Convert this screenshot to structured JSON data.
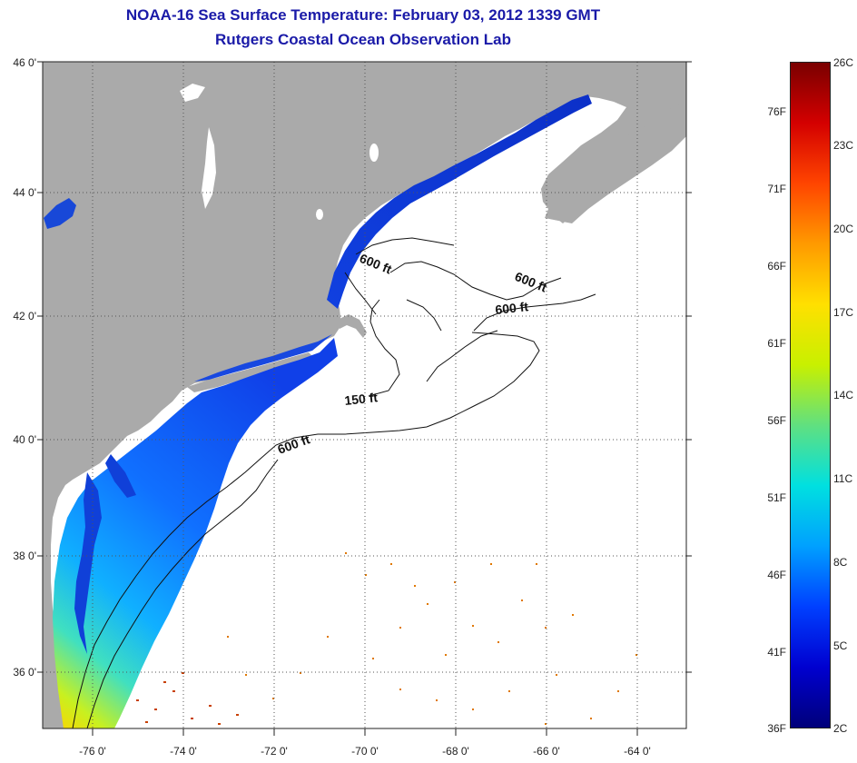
{
  "title": "NOAA-16 Sea Surface Temperature:  February 03, 2012 1339 GMT",
  "subtitle": "Rutgers Coastal Ocean Observation Lab",
  "lat_labels": [
    "46 0'",
    "44 0'",
    "42 0'",
    "40 0'",
    "38 0'",
    "36 0'"
  ],
  "lon_labels": [
    "-76 0'",
    "-74 0'",
    "-72 0'",
    "-70 0'",
    "-68 0'",
    "-66 0'",
    "-64 0'"
  ],
  "contour_labels": [
    "600 ft",
    "600 ft",
    "600 ft",
    "150 ft",
    "600 ft"
  ],
  "colorbar": {
    "fahrenheit_labels": [
      "76F",
      "71F",
      "66F",
      "61F",
      "56F",
      "51F",
      "46F",
      "41F",
      "36F"
    ],
    "celsius_labels": [
      "26C",
      "23C",
      "20C",
      "17C",
      "14C",
      "11C",
      "8C",
      "5C",
      "2C"
    ],
    "gradient_colors": [
      "#7a0000",
      "#d40000",
      "#ff4500",
      "#ff9a00",
      "#ffe000",
      "#c8f000",
      "#60e080",
      "#00e0e0",
      "#00a0ff",
      "#0040ff",
      "#0000d0",
      "#00007a"
    ]
  },
  "colors": {
    "land": "#aaaaaa",
    "ocean": "#ffffff",
    "title": "#1a1aa8"
  }
}
